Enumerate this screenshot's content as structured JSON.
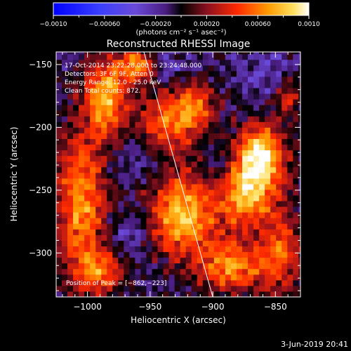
{
  "chart_data": {
    "type": "heatmap",
    "title": "Reconstructed RHESSI Image",
    "xlabel": "Heliocentric X (arcsec)",
    "ylabel": "Heliocentric Y (arcsec)",
    "xlim": [
      -1025,
      -830
    ],
    "ylim": [
      -335,
      -140
    ],
    "x_ticks": [
      -1000,
      -950,
      -900,
      -850
    ],
    "x_tick_labels": [
      "−1000",
      "−950",
      "−900",
      "−850"
    ],
    "y_ticks": [
      -150,
      -200,
      -250,
      -300
    ],
    "y_tick_labels": [
      "−150",
      "−200",
      "−250",
      "−300"
    ],
    "colorbar": {
      "min": -0.001,
      "max": 0.001,
      "ticks": [
        -0.001,
        -0.0006,
        -0.0002,
        0.0002,
        0.0006,
        0.001
      ],
      "tick_labels": [
        "−0.0010",
        "−0.00060",
        "−0.00020",
        "0.00020",
        "0.00060",
        "0.0010"
      ],
      "units_label": "(photons cm⁻² s⁻¹ asec⁻²)"
    },
    "annotations": [
      "17-Oct-2014 23:22:28.000 to 23:24:48.000",
      "Detectors: 3F 6F 9F, Atten 0",
      "Energy Range: 12.0 - 25.0 keV",
      "Clean     Total counts: 872."
    ],
    "peak_label": "Position of Peak = [−862,−223]",
    "peak": [
      -862,
      -223
    ],
    "limb_line": {
      "x": [
        -955,
        -900
      ],
      "y": [
        -140,
        -335
      ]
    },
    "blobs": [
      {
        "x": -985,
        "y": -175,
        "sx": 12,
        "sy": 22,
        "amp": 0.85
      },
      {
        "x": -960,
        "y": -150,
        "sx": 10,
        "sy": 8,
        "amp": 0.7
      },
      {
        "x": -1005,
        "y": -260,
        "sx": 14,
        "sy": 40,
        "amp": 0.75
      },
      {
        "x": -940,
        "y": -200,
        "sx": 16,
        "sy": 20,
        "amp": 0.6
      },
      {
        "x": -925,
        "y": -270,
        "sx": 18,
        "sy": 22,
        "amp": 0.9
      },
      {
        "x": -915,
        "y": -185,
        "sx": 12,
        "sy": 14,
        "amp": 0.65
      },
      {
        "x": -862,
        "y": -223,
        "sx": 14,
        "sy": 18,
        "amp": 1.0
      },
      {
        "x": -875,
        "y": -255,
        "sx": 16,
        "sy": 18,
        "amp": 0.8
      },
      {
        "x": -885,
        "y": -310,
        "sx": 18,
        "sy": 14,
        "amp": 0.75
      },
      {
        "x": -845,
        "y": -300,
        "sx": 12,
        "sy": 24,
        "amp": 0.55
      },
      {
        "x": -990,
        "y": -315,
        "sx": 14,
        "sy": 12,
        "amp": 0.55
      },
      {
        "x": -840,
        "y": -175,
        "sx": 8,
        "sy": 10,
        "amp": 0.45
      }
    ],
    "negative_blobs": [
      {
        "x": -955,
        "y": -220,
        "sx": 14,
        "sy": 14,
        "amp": 0.6
      },
      {
        "x": -965,
        "y": -285,
        "sx": 12,
        "sy": 12,
        "amp": 0.55
      },
      {
        "x": -855,
        "y": -160,
        "sx": 14,
        "sy": 14,
        "amp": 0.5
      },
      {
        "x": -895,
        "y": -230,
        "sx": 10,
        "sy": 12,
        "amp": 0.45
      },
      {
        "x": -935,
        "y": -155,
        "sx": 10,
        "sy": 10,
        "amp": 0.4
      }
    ]
  },
  "footer": {
    "date": "3-Jun-2019 20:41"
  },
  "colors": {
    "background": "#000000",
    "text": "#ffffff"
  }
}
